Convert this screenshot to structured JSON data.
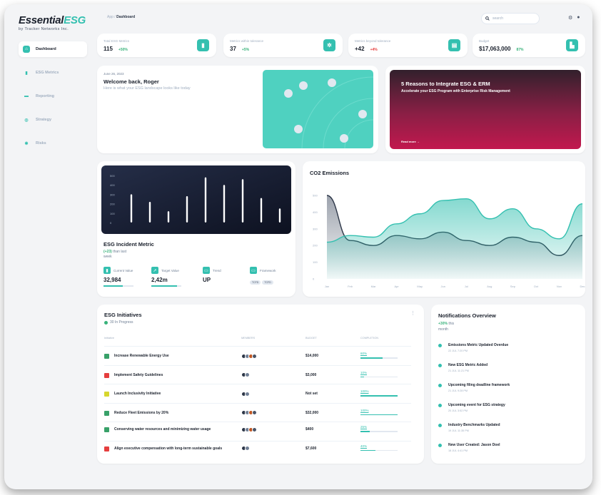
{
  "app": {
    "logo_main": "Essential",
    "logo_accent": "ESG",
    "logo_sub": "by Tracker Networks Inc."
  },
  "breadcrumb": {
    "root": "App",
    "separator": " / ",
    "current": "Dashboard"
  },
  "search": {
    "placeholder": "search"
  },
  "sidebar": {
    "items": [
      {
        "label": "Dashboard",
        "icon": "home-icon",
        "glyph": "⌂"
      },
      {
        "label": "ESG Metrics",
        "icon": "bar-chart-icon",
        "glyph": "▮"
      },
      {
        "label": "Reporting",
        "icon": "report-icon",
        "glyph": "▬"
      },
      {
        "label": "Strategy",
        "icon": "target-icon",
        "glyph": "◎"
      },
      {
        "label": "Risks",
        "icon": "asterisk-icon",
        "glyph": "✱"
      }
    ]
  },
  "stats": [
    {
      "label": "Total ESG Metrics",
      "value": "115",
      "change": "+50%",
      "change_color": "#38b27a",
      "icon": "bar-chart-icon",
      "glyph": "▮"
    },
    {
      "label": "Metrics within tolerance",
      "value": "37",
      "change": "+5%",
      "change_color": "#38b27a",
      "icon": "gear-icon",
      "glyph": "✲"
    },
    {
      "label": "Metrics beyond tolerance",
      "value": "+42",
      "change": "+4%",
      "change_color": "#e53e3e",
      "icon": "document-icon",
      "glyph": "▤"
    },
    {
      "label": "Budget",
      "value": "$17,063,000",
      "change": "87%",
      "change_color": "#38b27a",
      "icon": "chart-icon",
      "glyph": "▙"
    }
  ],
  "welcome": {
    "date": "June 26, 2023",
    "title": "Welcome back, Roger",
    "subtitle": "Here is what your ESG landscape looks like today"
  },
  "promo": {
    "title": "5 Reasons to Integrate ESG & ERM",
    "subtitle": "Accelerate your ESG Program with Enterprise Risk Management",
    "link": "Read more  →"
  },
  "incident": {
    "title": "ESG Incident Metric",
    "change": "(+23)",
    "change_text": " than last",
    "change_text2": "week",
    "metrics": [
      {
        "label": "Current Value",
        "value": "32,984",
        "progress": 0.65
      },
      {
        "label": "Target Value",
        "value": "2,42m",
        "progress": 0.85
      },
      {
        "label": "Trend",
        "value": "UP",
        "progress": null
      },
      {
        "label": "Framework",
        "value": "",
        "progress": null,
        "tags": [
          "TCFD",
          "TCFD"
        ]
      }
    ],
    "chart_data": {
      "type": "bar",
      "yticks": [
        "500",
        "400",
        "300",
        "200",
        "100",
        "0"
      ],
      "ylim": [
        0,
        500
      ],
      "values": [
        300,
        220,
        120,
        280,
        480,
        400,
        460,
        260,
        150
      ]
    }
  },
  "co2": {
    "title": "CO2 Emissions",
    "chart_data": {
      "type": "area",
      "categories": [
        "Jan",
        "Feb",
        "Mar",
        "Apr",
        "May",
        "Jun",
        "Jul",
        "Aug",
        "Sep",
        "Oct",
        "Nov",
        "Dec"
      ],
      "yticks": [
        "0",
        "100",
        "200",
        "300",
        "400",
        "500"
      ],
      "ylim": [
        0,
        500
      ],
      "series": [
        {
          "values": [
            220,
            260,
            250,
            330,
            390,
            470,
            480,
            360,
            420,
            300,
            240,
            450
          ],
          "color": "#34c0b0"
        },
        {
          "values": [
            500,
            230,
            200,
            260,
            240,
            280,
            230,
            200,
            250,
            220,
            140,
            260
          ],
          "color": "#2d3748"
        }
      ]
    }
  },
  "initiatives": {
    "title": "ESG Initiatives",
    "in_progress": "30 In Progress",
    "columns": [
      "Initiative",
      "MEMBERS",
      "BUDGET",
      "COMPLETION"
    ],
    "rows": [
      {
        "name": "Increase Renewable Energy Use",
        "budget": "$14,000",
        "completion": "60%",
        "progress": 0.6,
        "color": "#38a169",
        "members": 4
      },
      {
        "name": "Implement Safety Guidelines",
        "budget": "$3,000",
        "completion": "10%",
        "progress": 0.1,
        "color": "#e53e3e",
        "members": 2
      },
      {
        "name": "Launch Inclusivity Initiative",
        "budget": "Not set",
        "completion": "100%",
        "progress": 1.0,
        "color": "#d6d62d",
        "members": 2
      },
      {
        "name": "Reduce Fleet Emissions by 20%",
        "budget": "$32,000",
        "completion": "100%",
        "progress": 1.0,
        "color": "#38a169",
        "members": 4
      },
      {
        "name": "Conserving water resources and minimizing water usage",
        "budget": "$400",
        "completion": "25%",
        "progress": 0.25,
        "color": "#38a169",
        "members": 4
      },
      {
        "name": "Align executive compensation with long-term sustainable goals",
        "budget": "$7,600",
        "completion": "40%",
        "progress": 0.4,
        "color": "#e53e3e",
        "members": 2
      }
    ]
  },
  "notifications": {
    "title": "Notifications Overview",
    "change": "+30%",
    "change_text": " this",
    "change_text2": "month",
    "items": [
      {
        "title": "Emissions Metric Updated Overdue",
        "date": "22 JUL 7:20 PM"
      },
      {
        "title": "New ESG Metric Added",
        "date": "21 JUL 11:21 PM"
      },
      {
        "title": "Upcoming filing deadline  framework",
        "date": "21 JUL 9:28 PM"
      },
      {
        "title": "Upcoming event for ESG strategy",
        "date": "20 JUL 3:52 PM"
      },
      {
        "title": "Industry Benchmarks Updated",
        "date": "19 JUL 11:35 PM"
      },
      {
        "title": "New User Created: Jason Doel",
        "date": "18 JUL 4:41 PM"
      }
    ]
  }
}
